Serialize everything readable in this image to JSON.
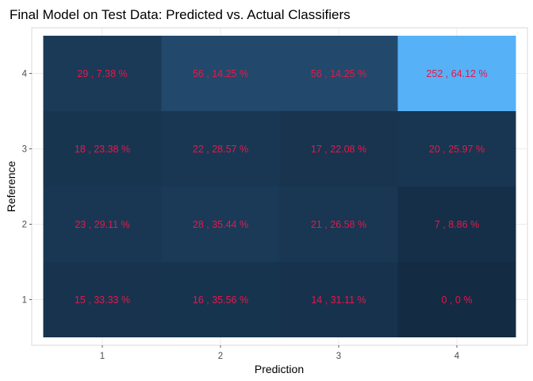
{
  "chart_data": {
    "type": "heatmap",
    "title": "Final Model on Test Data: Predicted vs. Actual Classifiers",
    "xlabel": "Prediction",
    "ylabel": "Reference",
    "x_categories": [
      "1",
      "2",
      "3",
      "4"
    ],
    "y_categories": [
      "1",
      "2",
      "3",
      "4"
    ],
    "cells": [
      {
        "prediction": "1",
        "reference": "4",
        "count": 29,
        "percent": 7.38,
        "label": "29 , 7.38 %"
      },
      {
        "prediction": "2",
        "reference": "4",
        "count": 56,
        "percent": 14.25,
        "label": "56 , 14.25 %"
      },
      {
        "prediction": "3",
        "reference": "4",
        "count": 56,
        "percent": 14.25,
        "label": "56 , 14.25 %"
      },
      {
        "prediction": "4",
        "reference": "4",
        "count": 252,
        "percent": 64.12,
        "label": "252 , 64.12 %"
      },
      {
        "prediction": "1",
        "reference": "3",
        "count": 18,
        "percent": 23.38,
        "label": "18 , 23.38 %"
      },
      {
        "prediction": "2",
        "reference": "3",
        "count": 22,
        "percent": 28.57,
        "label": "22 , 28.57 %"
      },
      {
        "prediction": "3",
        "reference": "3",
        "count": 17,
        "percent": 22.08,
        "label": "17 , 22.08 %"
      },
      {
        "prediction": "4",
        "reference": "3",
        "count": 20,
        "percent": 25.97,
        "label": "20 , 25.97 %"
      },
      {
        "prediction": "1",
        "reference": "2",
        "count": 23,
        "percent": 29.11,
        "label": "23 , 29.11 %"
      },
      {
        "prediction": "2",
        "reference": "2",
        "count": 28,
        "percent": 35.44,
        "label": "28 , 35.44 %"
      },
      {
        "prediction": "3",
        "reference": "2",
        "count": 21,
        "percent": 26.58,
        "label": "21 , 26.58 %"
      },
      {
        "prediction": "4",
        "reference": "2",
        "count": 7,
        "percent": 8.86,
        "label": "7 , 8.86 %"
      },
      {
        "prediction": "1",
        "reference": "1",
        "count": 15,
        "percent": 33.33,
        "label": "15 , 33.33 %"
      },
      {
        "prediction": "2",
        "reference": "1",
        "count": 16,
        "percent": 35.56,
        "label": "16 , 35.56 %"
      },
      {
        "prediction": "3",
        "reference": "1",
        "count": 14,
        "percent": 31.11,
        "label": "14 , 31.11 %"
      },
      {
        "prediction": "4",
        "reference": "1",
        "count": 0,
        "percent": 0,
        "label": "0 , 0 %"
      }
    ],
    "color_scale": {
      "low": "#132B43",
      "high": "#56B1F7"
    },
    "label_color": "#e8174a",
    "legend": "none",
    "grid": true
  }
}
